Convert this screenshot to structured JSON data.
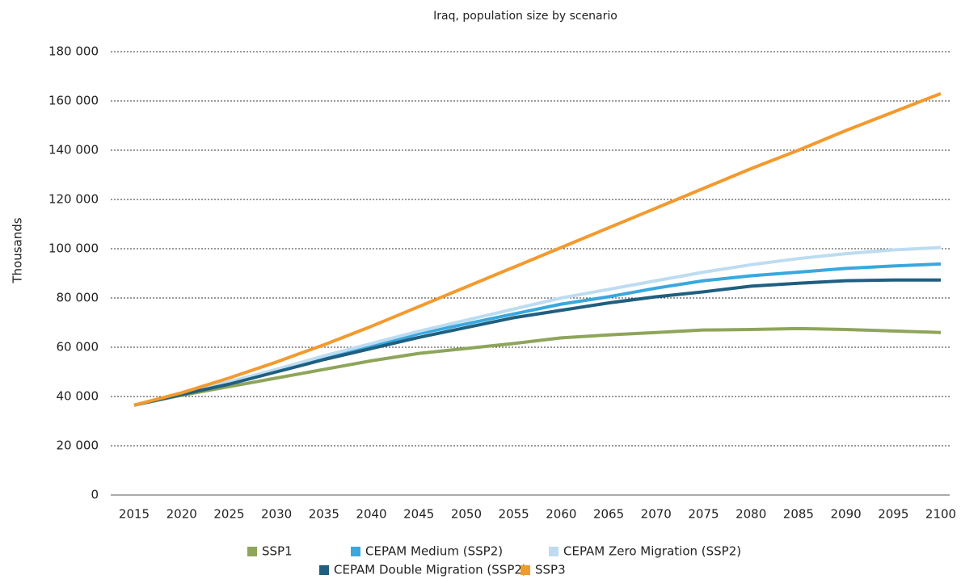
{
  "chart_data": {
    "type": "line",
    "title": "Iraq, population size by scenario",
    "y_label": "Thousands",
    "categories": [
      "2015",
      "2020",
      "2025",
      "2030",
      "2035",
      "2040",
      "2045",
      "2050",
      "2055",
      "2060",
      "2065",
      "2070",
      "2075",
      "2080",
      "2085",
      "2090",
      "2095",
      "2100"
    ],
    "series": [
      {
        "name": "SSP1",
        "color": "#8ea55a",
        "values": [
          36500,
          40500,
          44000,
          47500,
          51000,
          54500,
          57500,
          59500,
          61500,
          63800,
          65000,
          66000,
          67000,
          67200,
          67600,
          67200,
          66600,
          66000
        ]
      },
      {
        "name": "CEPAM Medium (SSP2)",
        "color": "#39a8df",
        "values": [
          36500,
          41000,
          45500,
          50500,
          55500,
          60500,
          65500,
          69500,
          73500,
          77500,
          80500,
          84000,
          87000,
          89000,
          90500,
          92000,
          93000,
          93800
        ]
      },
      {
        "name": "CEPAM Zero Migration (SSP2)",
        "color": "#bddcf1",
        "values": [
          36500,
          41200,
          46000,
          51000,
          56500,
          61500,
          66500,
          71000,
          75500,
          80000,
          83500,
          87000,
          90500,
          93500,
          96000,
          98000,
          99500,
          100500
        ]
      },
      {
        "name": "CEPAM Double Migration (SSP2)",
        "color": "#1f5f80",
        "values": [
          36500,
          40800,
          45000,
          50000,
          55000,
          59500,
          64000,
          68000,
          72000,
          75000,
          78000,
          80500,
          82500,
          84800,
          86000,
          87000,
          87300,
          87300
        ]
      },
      {
        "name": "SSP3",
        "color": "#f39a2e",
        "values": [
          36500,
          41500,
          47500,
          54000,
          61000,
          68500,
          76500,
          84500,
          92500,
          100500,
          108500,
          116500,
          124500,
          132500,
          140000,
          148000,
          155500,
          163000
        ]
      }
    ],
    "ylim": [
      0,
      180000
    ],
    "yticks": [
      {
        "value": 0,
        "label": "0"
      },
      {
        "value": 20000,
        "label": "20 000"
      },
      {
        "value": 40000,
        "label": "40 000"
      },
      {
        "value": 60000,
        "label": "60 000"
      },
      {
        "value": 80000,
        "label": "80 000"
      },
      {
        "value": 100000,
        "label": "100 000"
      },
      {
        "value": 120000,
        "label": "120 000"
      },
      {
        "value": 140000,
        "label": "140 000"
      },
      {
        "value": 160000,
        "label": "160 000"
      },
      {
        "value": 180000,
        "label": "180 000"
      }
    ],
    "grid": true,
    "legend": "bottom"
  }
}
